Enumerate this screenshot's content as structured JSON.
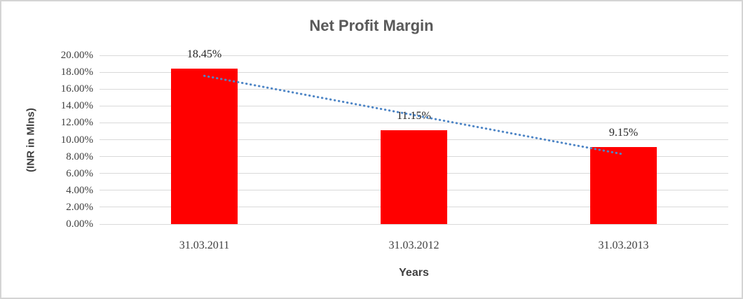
{
  "window": {
    "background": "#FFFFFF",
    "border_color": "#D4D4D4"
  },
  "chart_data": {
    "type": "bar",
    "title": "Net Profit Margin",
    "categories": [
      "31.03.2011",
      "31.03.2012",
      "31.03.2013"
    ],
    "values": [
      18.45,
      11.15,
      9.15
    ],
    "data_labels": [
      "18.45%",
      "11.15%",
      "9.15%"
    ],
    "xlabel": "Years",
    "ylabel": "(INR in Mlns)",
    "ylim": [
      0,
      20
    ],
    "ytick_step": 2,
    "ytick_labels": [
      "0.00%",
      "2.00%",
      "4.00%",
      "6.00%",
      "8.00%",
      "10.00%",
      "12.00%",
      "14.00%",
      "16.00%",
      "18.00%",
      "20.00%"
    ],
    "grid": true,
    "legend": "none",
    "bar_color": "#FF0000",
    "trendline": {
      "type": "linear",
      "style": "dotted",
      "color": "#4F86C6"
    }
  },
  "colors": {
    "title_text": "#595959",
    "axis_title_text": "#404040",
    "tick_text": "#3F3F3F",
    "data_label_text": "#262626",
    "gridline": "#D9D9D9"
  }
}
